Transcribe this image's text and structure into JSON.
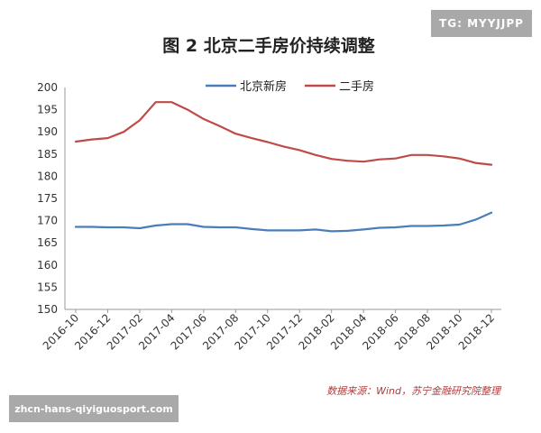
{
  "badges": {
    "tag": "TG: MYYJJPP",
    "site": "zhcn-hans-qiyiguosport.com"
  },
  "chart_data": {
    "type": "line",
    "title": "图 2  北京二手房价持续调整",
    "source": "数据来源：Wind，苏宁金融研究院整理",
    "xlabel": "",
    "ylabel": "",
    "ylim": [
      150,
      200
    ],
    "yticks": [
      150,
      155,
      160,
      165,
      170,
      175,
      180,
      185,
      190,
      195,
      200
    ],
    "x_tick_labels": [
      "2016-10",
      "2016-12",
      "2017-02",
      "2017-04",
      "2017-06",
      "2017-08",
      "2017-10",
      "2017-12",
      "2018-02",
      "2018-04",
      "2018-06",
      "2018-08",
      "2018-10",
      "2018-12"
    ],
    "x": [
      "2016-10",
      "2016-11",
      "2016-12",
      "2017-01",
      "2017-02",
      "2017-03",
      "2017-04",
      "2017-05",
      "2017-06",
      "2017-07",
      "2017-08",
      "2017-09",
      "2017-10",
      "2017-11",
      "2017-12",
      "2018-01",
      "2018-02",
      "2018-03",
      "2018-04",
      "2018-05",
      "2018-06",
      "2018-07",
      "2018-08",
      "2018-09",
      "2018-10",
      "2018-11",
      "2018-12"
    ],
    "grid": false,
    "legend": "top",
    "series": [
      {
        "name": "北京新房",
        "color": "#4a7ebb",
        "values": [
          168.6,
          168.6,
          168.5,
          168.5,
          168.3,
          168.9,
          169.2,
          169.2,
          168.6,
          168.5,
          168.5,
          168.1,
          167.8,
          167.8,
          167.8,
          168.0,
          167.6,
          167.7,
          168.0,
          168.4,
          168.5,
          168.8,
          168.8,
          168.9,
          169.1,
          170.2,
          171.8
        ]
      },
      {
        "name": "二手房",
        "color": "#be4b48",
        "values": [
          187.8,
          188.3,
          188.6,
          190.0,
          192.6,
          196.7,
          196.7,
          195.0,
          192.9,
          191.3,
          189.6,
          188.6,
          187.7,
          186.7,
          185.9,
          184.8,
          183.9,
          183.5,
          183.3,
          183.8,
          184.0,
          184.8,
          184.8,
          184.5,
          184.0,
          183.0,
          182.6
        ]
      }
    ]
  }
}
